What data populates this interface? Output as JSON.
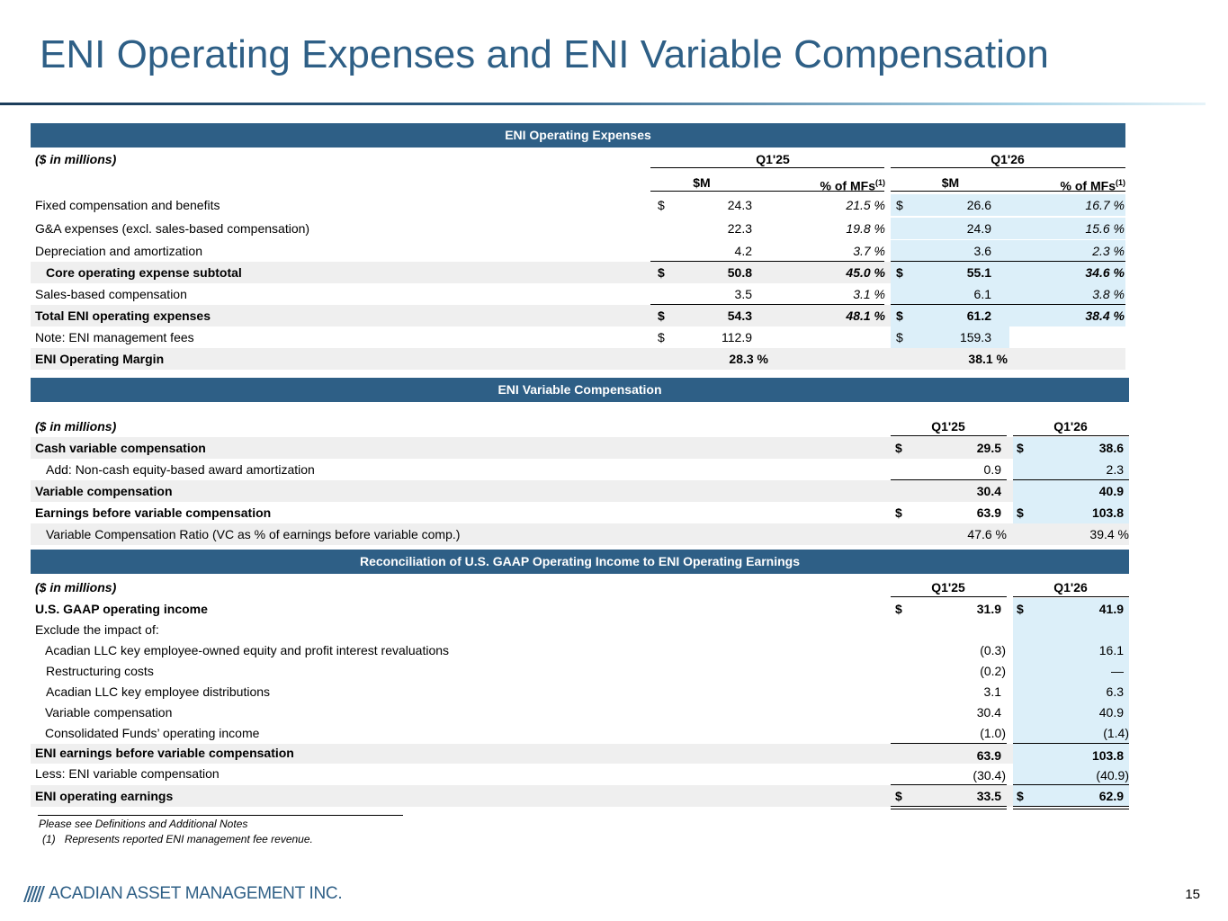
{
  "title": "ENI Operating Expenses and ENI Variable Compensation",
  "page_number": "15",
  "footer": {
    "company": "ACADIAN ASSET MANAGEMENT INC.",
    "logo_icon": "acadian-stripes-logo"
  },
  "colors": {
    "title": "#2e5f86",
    "band": "#2e5f86",
    "highlight": "#dceff9",
    "shade": "#efefef"
  },
  "opex": {
    "heading": "ENI Operating Expenses",
    "units": "($ in millions)",
    "period1": "Q1'25",
    "period2": "Q1'26",
    "col_m": "$M",
    "col_pct": "% of MFs",
    "col_pct_sup": "(1)",
    "rows": [
      {
        "label": "Fixed compensation and benefits",
        "d1": "$",
        "v1": "24.3",
        "p1": "21.5 %",
        "d2": "$",
        "v2": "26.6",
        "p2": "16.7 %"
      },
      {
        "label": "G&A expenses (excl. sales-based compensation)",
        "d1": "",
        "v1": "22.3",
        "p1": "19.8 %",
        "d2": "",
        "v2": "24.9",
        "p2": "15.6 %"
      },
      {
        "label": "Depreciation and amortization",
        "d1": "",
        "v1": "4.2",
        "p1": "3.7 %",
        "d2": "",
        "v2": "3.6",
        "p2": "2.3 %"
      },
      {
        "label": "Core operating expense subtotal",
        "d1": "$",
        "v1": "50.8",
        "p1": "45.0 %",
        "d2": "$",
        "v2": "55.1",
        "p2": "34.6 %"
      },
      {
        "label": "Sales-based compensation",
        "d1": "",
        "v1": "3.5",
        "p1": "3.1 %",
        "d2": "",
        "v2": "6.1",
        "p2": "3.8 %"
      },
      {
        "label": "Total ENI operating expenses",
        "d1": "$",
        "v1": "54.3",
        "p1": "48.1 %",
        "d2": "$",
        "v2": "61.2",
        "p2": "38.4 %"
      },
      {
        "label": "Note: ENI management fees",
        "d1": "$",
        "v1": "112.9",
        "p1": "",
        "d2": "$",
        "v2": "159.3",
        "p2": ""
      },
      {
        "label": "ENI Operating Margin",
        "d1": "",
        "v1": "28.3 %",
        "p1": "",
        "d2": "",
        "v2": "38.1 %",
        "p2": ""
      }
    ]
  },
  "varcomp": {
    "heading": "ENI Variable Compensation",
    "units": "($ in millions)",
    "period1": "Q1'25",
    "period2": "Q1'26",
    "rows": [
      {
        "label": "Cash variable compensation",
        "d1": "$",
        "v1": "29.5",
        "d2": "$",
        "v2": "38.6"
      },
      {
        "label": "Add: Non-cash equity-based award amortization",
        "d1": "",
        "v1": "0.9",
        "d2": "",
        "v2": "2.3"
      },
      {
        "label": "Variable compensation",
        "d1": "",
        "v1": "30.4",
        "d2": "",
        "v2": "40.9"
      },
      {
        "label": "Earnings before variable compensation",
        "d1": "$",
        "v1": "63.9",
        "d2": "$",
        "v2": "103.8"
      },
      {
        "label": "Variable Compensation Ratio (VC as % of earnings before variable comp.)",
        "d1": "",
        "v1": "47.6 %",
        "d2": "",
        "v2": "39.4 %"
      }
    ]
  },
  "recon": {
    "heading": "Reconciliation of U.S. GAAP Operating Income to ENI Operating Earnings",
    "units": "($ in millions)",
    "period1": "Q1'25",
    "period2": "Q1'26",
    "rows": [
      {
        "label": "U.S. GAAP operating income",
        "d1": "$",
        "v1": "31.9",
        "d2": "$",
        "v2": "41.9"
      },
      {
        "label": "Exclude the impact of:",
        "d1": "",
        "v1": "",
        "d2": "",
        "v2": ""
      },
      {
        "label": "Acadian LLC key employee-owned equity and profit interest revaluations",
        "d1": "",
        "v1": "(0.3)",
        "d2": "",
        "v2": "16.1"
      },
      {
        "label": "Restructuring costs",
        "d1": "",
        "v1": "(0.2)",
        "d2": "",
        "v2": "—"
      },
      {
        "label": "Acadian LLC key employee distributions",
        "d1": "",
        "v1": "3.1",
        "d2": "",
        "v2": "6.3"
      },
      {
        "label": "Variable compensation",
        "d1": "",
        "v1": "30.4",
        "d2": "",
        "v2": "40.9"
      },
      {
        "label": "Consolidated Funds’ operating income",
        "d1": "",
        "v1": "(1.0)",
        "d2": "",
        "v2": "(1.4)"
      },
      {
        "label": "ENI earnings before variable compensation",
        "d1": "",
        "v1": "63.9",
        "d2": "",
        "v2": "103.8"
      },
      {
        "label": "Less: ENI variable compensation",
        "d1": "",
        "v1": "(30.4)",
        "d2": "",
        "v2": "(40.9)"
      },
      {
        "label": "ENI operating earnings",
        "d1": "$",
        "v1": "33.5",
        "d2": "$",
        "v2": "62.9"
      }
    ]
  },
  "notes": {
    "line1": "Please see Definitions and Additional Notes",
    "line2_num": "(1)",
    "line2_text": "Represents reported ENI management fee revenue."
  }
}
